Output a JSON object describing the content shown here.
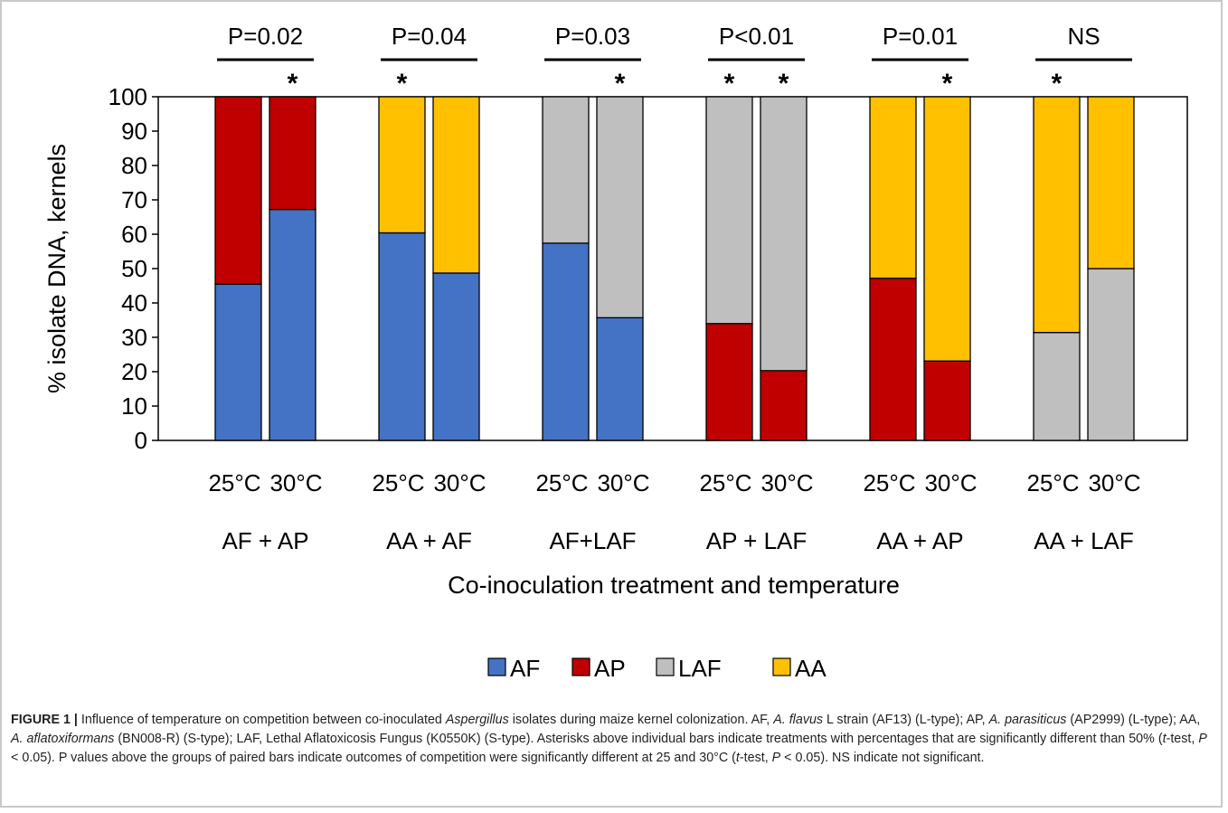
{
  "chart_data": {
    "type": "bar",
    "stacked": true,
    "ylabel": "% isolate DNA, kernels",
    "xlabel": "Co-inoculation treatment and temperature",
    "ylim": [
      0,
      100
    ],
    "yticks": [
      0,
      10,
      20,
      30,
      40,
      50,
      60,
      70,
      80,
      90,
      100
    ],
    "legend": {
      "placement": "bottom",
      "entries": [
        {
          "name": "AF",
          "color": "#4472c4"
        },
        {
          "name": "AP",
          "color": "#c00000"
        },
        {
          "name": "LAF",
          "color": "#bfbfbf"
        },
        {
          "name": "AA",
          "color": "#ffc000"
        }
      ]
    },
    "groups": [
      {
        "label": "AF + AP",
        "pvalue": "P=0.02",
        "bars": [
          {
            "temp": "25°C",
            "star": false,
            "segments": [
              {
                "isolate": "AF",
                "value": 45.5
              },
              {
                "isolate": "AP",
                "value": 54.5
              }
            ]
          },
          {
            "temp": "30°C",
            "star": true,
            "segments": [
              {
                "isolate": "AF",
                "value": 67.2
              },
              {
                "isolate": "AP",
                "value": 32.8
              }
            ]
          }
        ]
      },
      {
        "label": "AA + AF",
        "pvalue": "P=0.04",
        "bars": [
          {
            "temp": "25°C",
            "star": true,
            "segments": [
              {
                "isolate": "AF",
                "value": 60.4
              },
              {
                "isolate": "AA",
                "value": 39.6
              }
            ]
          },
          {
            "temp": "30°C",
            "star": false,
            "segments": [
              {
                "isolate": "AF",
                "value": 48.7
              },
              {
                "isolate": "AA",
                "value": 51.3
              }
            ]
          }
        ]
      },
      {
        "label": "AF+LAF",
        "pvalue": "P=0.03",
        "bars": [
          {
            "temp": "25°C",
            "star": false,
            "segments": [
              {
                "isolate": "AF",
                "value": 57.4
              },
              {
                "isolate": "LAF",
                "value": 42.6
              }
            ]
          },
          {
            "temp": "30°C",
            "star": true,
            "segments": [
              {
                "isolate": "AF",
                "value": 35.7
              },
              {
                "isolate": "LAF",
                "value": 64.3
              }
            ]
          }
        ]
      },
      {
        "label": "AP + LAF",
        "pvalue": "P<0.01",
        "bars": [
          {
            "temp": "25°C",
            "star": true,
            "segments": [
              {
                "isolate": "AP",
                "value": 34.0
              },
              {
                "isolate": "LAF",
                "value": 66.0
              }
            ]
          },
          {
            "temp": "30°C",
            "star": true,
            "segments": [
              {
                "isolate": "AP",
                "value": 20.3
              },
              {
                "isolate": "LAF",
                "value": 79.7
              }
            ]
          }
        ]
      },
      {
        "label": "AA + AP",
        "pvalue": "P=0.01",
        "bars": [
          {
            "temp": "25°C",
            "star": false,
            "segments": [
              {
                "isolate": "AP",
                "value": 47.2
              },
              {
                "isolate": "AA",
                "value": 52.8
              }
            ]
          },
          {
            "temp": "30°C",
            "star": true,
            "segments": [
              {
                "isolate": "AP",
                "value": 23.1
              },
              {
                "isolate": "AA",
                "value": 76.9
              }
            ]
          }
        ]
      },
      {
        "label": "AA + LAF",
        "pvalue": "NS",
        "bars": [
          {
            "temp": "25°C",
            "star": true,
            "segments": [
              {
                "isolate": "LAF",
                "value": 31.4
              },
              {
                "isolate": "AA",
                "value": 68.6
              }
            ]
          },
          {
            "temp": "30°C",
            "star": false,
            "segments": [
              {
                "isolate": "LAF",
                "value": 50.0
              },
              {
                "isolate": "AA",
                "value": 50.0
              }
            ]
          }
        ]
      }
    ],
    "star_symbol": "*"
  },
  "caption": {
    "label": "FIGURE 1 |",
    "t1": " Influence of temperature on competition between co-inoculated ",
    "i1": "Aspergillus",
    "t2": " isolates during maize kernel colonization. AF, ",
    "i2": "A. flavus",
    "t3": " L strain (AF13) (L-type); AP, ",
    "i3": "A. parasiticus",
    "t4": " (AP2999) (L-type); AA, ",
    "i4": "A. aflatoxiformans",
    "t5": " (BN008-R) (S-type); LAF, Lethal Aflatoxicosis Fungus (K0550K) (S-type). Asterisks above individual bars indicate treatments with percentages that are significantly different than 50% (",
    "i5": "t",
    "t6": "-test, ",
    "i6": "P",
    "t7": " < 0.05). P values above the groups of paired bars indicate outcomes of competition were significantly different at 25 and 30°C (",
    "i7": "t",
    "t8": "-test, ",
    "i8": "P",
    "t9": " < 0.05). NS indicate not significant."
  }
}
